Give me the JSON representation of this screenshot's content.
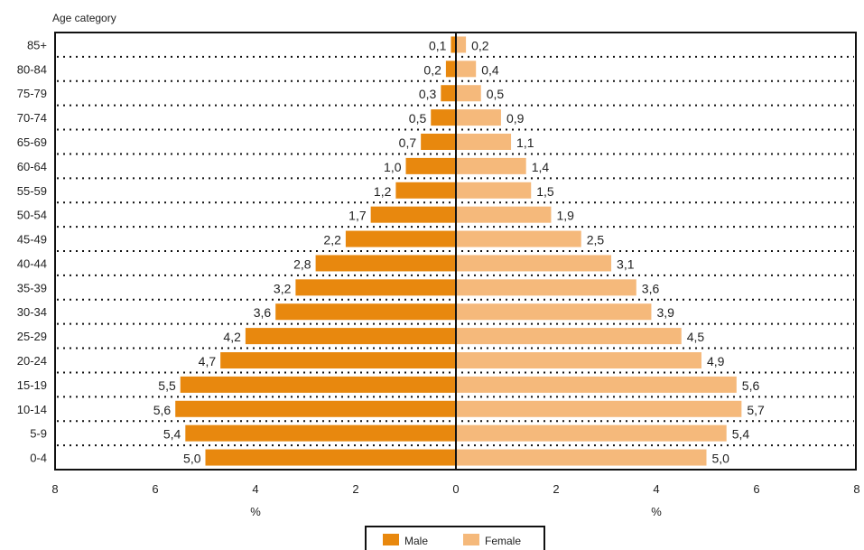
{
  "chart_data": {
    "type": "bar",
    "orientation": "horizontal",
    "layout": "population-pyramid",
    "title": "Age category",
    "categories": [
      "85+",
      "80-84",
      "75-79",
      "70-74",
      "65-69",
      "60-64",
      "55-59",
      "50-54",
      "45-49",
      "40-44",
      "35-39",
      "30-34",
      "25-29",
      "20-24",
      "15-19",
      "10-14",
      "5-9",
      "0-4"
    ],
    "series": [
      {
        "name": "Male",
        "color": "#E8880E",
        "values": [
          0.1,
          0.2,
          0.3,
          0.5,
          0.7,
          1.0,
          1.2,
          1.7,
          2.2,
          2.8,
          3.2,
          3.6,
          4.2,
          4.7,
          5.5,
          5.6,
          5.4,
          5.0
        ],
        "labels": [
          "0,1",
          "0,2",
          "0,3",
          "0,5",
          "0,7",
          "1,0",
          "1,2",
          "1,7",
          "2,2",
          "2,8",
          "3,2",
          "3,6",
          "4,2",
          "4,7",
          "5,5",
          "5,6",
          "5,4",
          "5,0"
        ]
      },
      {
        "name": "Female",
        "color": "#F5B97B",
        "values": [
          0.2,
          0.4,
          0.5,
          0.9,
          1.1,
          1.4,
          1.5,
          1.9,
          2.5,
          3.1,
          3.6,
          3.9,
          4.5,
          4.9,
          5.6,
          5.7,
          5.4,
          5.0
        ],
        "labels": [
          "0,2",
          "0,4",
          "0,5",
          "0,9",
          "1,1",
          "1,4",
          "1,5",
          "1,9",
          "2,5",
          "3,1",
          "3,6",
          "3,9",
          "4,5",
          "4,9",
          "5,6",
          "5,7",
          "5,4",
          "5,0"
        ]
      }
    ],
    "xlim": [
      0,
      8
    ],
    "xticks": [
      "8",
      "6",
      "4",
      "2",
      "0",
      "2",
      "4",
      "6",
      "8"
    ],
    "xlabel_left": "%",
    "xlabel_right": "%",
    "grid": "dotted horizontal lines between categories",
    "legend_position": "bottom-center"
  }
}
